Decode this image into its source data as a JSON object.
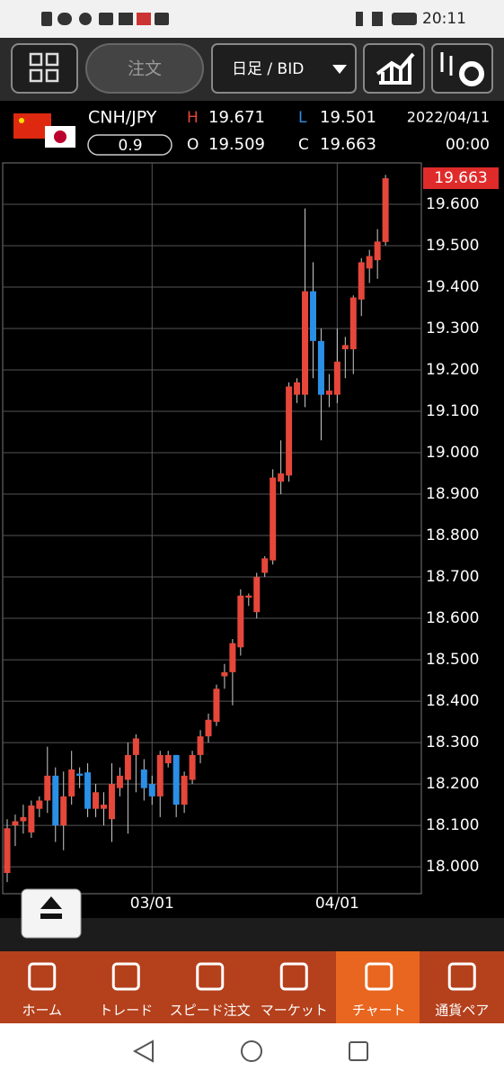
{
  "status_bar": {
    "time": "20:11"
  },
  "toolbar": {
    "order": "注文",
    "period": "日足 / BID"
  },
  "quote": {
    "symbol": "CNH/JPY",
    "spread": "0.9",
    "high_label": "H",
    "low_label": "L",
    "open_label": "O",
    "close_label": "C",
    "date": "2022/04/11",
    "time": "00:00"
  },
  "chart_data": {
    "type": "candlestick",
    "categories": [
      null,
      null,
      null,
      null,
      null,
      null,
      null,
      null,
      null,
      null,
      null,
      null,
      null,
      null,
      null,
      null,
      null,
      null,
      "03/01",
      null,
      null,
      null,
      null,
      null,
      null,
      null,
      null,
      null,
      null,
      null,
      null,
      null,
      null,
      null,
      null,
      null,
      null,
      null,
      null,
      null,
      null,
      "04/01",
      null,
      null,
      null,
      null,
      null,
      null
    ],
    "open": [
      17.985,
      18.1,
      18.11,
      18.083,
      18.14,
      18.16,
      18.22,
      18.1,
      18.17,
      18.225,
      18.228,
      18.14,
      18.14,
      18.115,
      18.19,
      18.21,
      18.27,
      18.235,
      18.2,
      18.17,
      18.25,
      18.27,
      18.15,
      18.21,
      18.27,
      18.315,
      18.35,
      18.46,
      18.47,
      18.53,
      18.65,
      18.615,
      18.71,
      18.74,
      18.93,
      18.945,
      19.14,
      19.14,
      19.39,
      19.27,
      19.14,
      19.14,
      19.25,
      19.25,
      19.37,
      19.445,
      19.465,
      19.509
    ],
    "high": [
      18.115,
      18.126,
      18.15,
      18.16,
      18.17,
      18.29,
      18.24,
      18.23,
      18.28,
      18.24,
      18.25,
      18.2,
      18.18,
      18.25,
      18.24,
      18.3,
      18.32,
      18.26,
      18.22,
      18.28,
      18.28,
      18.27,
      18.23,
      18.28,
      18.33,
      18.37,
      18.44,
      18.49,
      18.55,
      18.67,
      18.66,
      18.71,
      18.75,
      18.96,
      19.03,
      19.17,
      19.18,
      19.59,
      19.46,
      19.3,
      19.19,
      19.3,
      19.28,
      19.38,
      19.47,
      19.49,
      19.54,
      19.671
    ],
    "low": [
      17.963,
      18.05,
      18.08,
      18.07,
      18.12,
      18.13,
      18.06,
      18.04,
      18.15,
      18.19,
      18.12,
      18.12,
      18.1,
      18.06,
      18.17,
      18.08,
      18.18,
      18.16,
      18.15,
      18.12,
      18.24,
      18.12,
      18.13,
      18.2,
      18.25,
      18.3,
      18.34,
      18.43,
      18.39,
      18.51,
      18.63,
      18.6,
      18.7,
      18.73,
      18.9,
      18.93,
      19.12,
      19.11,
      19.18,
      19.03,
      19.11,
      19.12,
      19.18,
      19.19,
      19.33,
      19.41,
      19.42,
      19.501
    ],
    "close": [
      18.093,
      18.11,
      18.12,
      18.148,
      18.16,
      18.22,
      18.1,
      18.17,
      18.235,
      18.22,
      18.14,
      18.18,
      18.15,
      18.2,
      18.22,
      18.27,
      18.31,
      18.19,
      18.17,
      18.27,
      18.27,
      18.15,
      18.22,
      18.27,
      18.315,
      18.355,
      18.43,
      18.47,
      18.54,
      18.655,
      18.655,
      18.7,
      18.745,
      18.94,
      18.95,
      19.16,
      19.17,
      19.39,
      19.27,
      19.14,
      19.15,
      19.22,
      19.26,
      19.375,
      19.46,
      19.475,
      19.51,
      19.663
    ],
    "up_color": "#e5473a",
    "down_color": "#2b8fe6",
    "ylim": [
      17.935,
      19.7
    ],
    "yticks": [
      {
        "value": 18.0,
        "label": "18.000"
      },
      {
        "value": 18.1,
        "label": "18.100"
      },
      {
        "value": 18.2,
        "label": "18.200"
      },
      {
        "value": 18.3,
        "label": "18.300"
      },
      {
        "value": 18.4,
        "label": "18.400"
      },
      {
        "value": 18.5,
        "label": "18.500"
      },
      {
        "value": 18.6,
        "label": "18.600"
      },
      {
        "value": 18.7,
        "label": "18.700"
      },
      {
        "value": 18.8,
        "label": "18.800"
      },
      {
        "value": 18.9,
        "label": "18.900"
      },
      {
        "value": 19.0,
        "label": "19.000"
      },
      {
        "value": 19.1,
        "label": "19.100"
      },
      {
        "value": 19.2,
        "label": "19.200"
      },
      {
        "value": 19.3,
        "label": "19.300"
      },
      {
        "value": 19.4,
        "label": "19.400"
      },
      {
        "value": 19.5,
        "label": "19.500"
      },
      {
        "value": 19.6,
        "label": "19.600"
      }
    ],
    "grid": true
  },
  "tabs": [
    "ホーム",
    "トレード",
    "スピード注文",
    "マーケット",
    "チャート",
    "通貨ペア"
  ]
}
